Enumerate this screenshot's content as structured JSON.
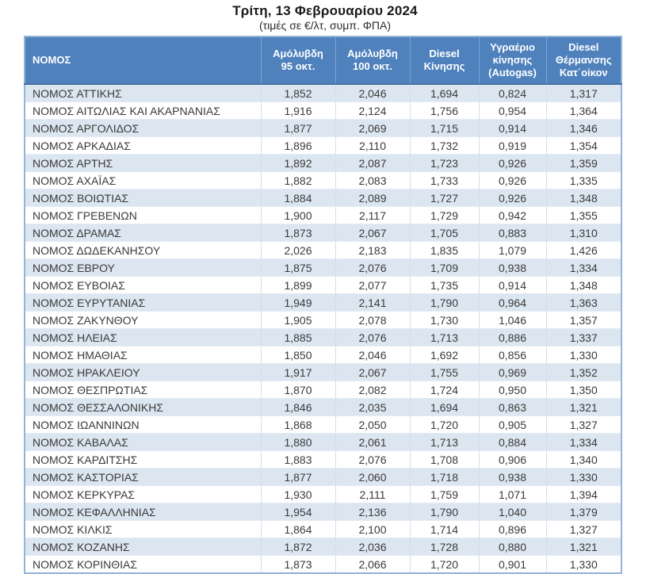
{
  "title": "Τρίτη, 13 Φεβρουαρίου 2024",
  "subtitle": "(τιμές σε €/λτ, συμπ. ΦΠΑ)",
  "colors": {
    "header_bg": "#4F81BD",
    "header_text": "#FFFFFF",
    "row_alt_bg": "#DCE6F1",
    "row_bg": "#FFFFFF",
    "table_border": "#95B3D7",
    "body_text": "#3A3A3A"
  },
  "table": {
    "columns": [
      {
        "id": "nomos",
        "lines": [
          "ΝΟΜΟΣ"
        ]
      },
      {
        "id": "unleaded95",
        "lines": [
          "Αμόλυβδη",
          "95 οκτ."
        ]
      },
      {
        "id": "unleaded100",
        "lines": [
          "Αμόλυβδη",
          "100 οκτ."
        ]
      },
      {
        "id": "diesel",
        "lines": [
          "Diesel",
          "Κίνησης"
        ]
      },
      {
        "id": "autogas",
        "lines": [
          "Υγραέριο",
          "κίνησης",
          "(Autogas)"
        ]
      },
      {
        "id": "heating-diesel",
        "lines": [
          "Diesel",
          "Θέρμανσης",
          "Κατ΄οίκον"
        ]
      }
    ],
    "rows": [
      {
        "name": "ΝΟΜΟΣ ΑΤΤΙΚΗΣ",
        "values": [
          "1,852",
          "2,046",
          "1,694",
          "0,824",
          "1,317"
        ]
      },
      {
        "name": "ΝΟΜΟΣ ΑΙΤΩΛΙΑΣ ΚΑΙ ΑΚΑΡΝΑΝΙΑΣ",
        "values": [
          "1,916",
          "2,124",
          "1,756",
          "0,954",
          "1,364"
        ]
      },
      {
        "name": "ΝΟΜΟΣ ΑΡΓΟΛΙΔΟΣ",
        "values": [
          "1,877",
          "2,069",
          "1,715",
          "0,914",
          "1,346"
        ]
      },
      {
        "name": "ΝΟΜΟΣ ΑΡΚΑΔΙΑΣ",
        "values": [
          "1,896",
          "2,110",
          "1,732",
          "0,919",
          "1,354"
        ]
      },
      {
        "name": "ΝΟΜΟΣ ΑΡΤΗΣ",
        "values": [
          "1,892",
          "2,087",
          "1,723",
          "0,926",
          "1,359"
        ]
      },
      {
        "name": "ΝΟΜΟΣ ΑΧΑΪΑΣ",
        "values": [
          "1,882",
          "2,083",
          "1,733",
          "0,926",
          "1,335"
        ]
      },
      {
        "name": "ΝΟΜΟΣ ΒΟΙΩΤΙΑΣ",
        "values": [
          "1,884",
          "2,089",
          "1,727",
          "0,926",
          "1,348"
        ]
      },
      {
        "name": "ΝΟΜΟΣ ΓΡΕΒΕΝΩΝ",
        "values": [
          "1,900",
          "2,117",
          "1,729",
          "0,942",
          "1,355"
        ]
      },
      {
        "name": "ΝΟΜΟΣ ΔΡΑΜΑΣ",
        "values": [
          "1,873",
          "2,067",
          "1,705",
          "0,883",
          "1,310"
        ]
      },
      {
        "name": "ΝΟΜΟΣ ΔΩΔΕΚΑΝΗΣΟΥ",
        "values": [
          "2,026",
          "2,183",
          "1,835",
          "1,079",
          "1,426"
        ]
      },
      {
        "name": "ΝΟΜΟΣ ΕΒΡΟΥ",
        "values": [
          "1,875",
          "2,076",
          "1,709",
          "0,938",
          "1,334"
        ]
      },
      {
        "name": "ΝΟΜΟΣ ΕΥΒΟΙΑΣ",
        "values": [
          "1,899",
          "2,077",
          "1,735",
          "0,914",
          "1,348"
        ]
      },
      {
        "name": "ΝΟΜΟΣ ΕΥΡΥΤΑΝΙΑΣ",
        "values": [
          "1,949",
          "2,141",
          "1,790",
          "0,964",
          "1,363"
        ]
      },
      {
        "name": "ΝΟΜΟΣ ΖΑΚΥΝΘΟΥ",
        "values": [
          "1,905",
          "2,078",
          "1,730",
          "1,046",
          "1,357"
        ]
      },
      {
        "name": "ΝΟΜΟΣ ΗΛΕΙΑΣ",
        "values": [
          "1,885",
          "2,076",
          "1,713",
          "0,886",
          "1,337"
        ]
      },
      {
        "name": "ΝΟΜΟΣ ΗΜΑΘΙΑΣ",
        "values": [
          "1,850",
          "2,046",
          "1,692",
          "0,856",
          "1,330"
        ]
      },
      {
        "name": "ΝΟΜΟΣ ΗΡΑΚΛΕΙΟΥ",
        "values": [
          "1,917",
          "2,067",
          "1,755",
          "0,969",
          "1,352"
        ]
      },
      {
        "name": "ΝΟΜΟΣ ΘΕΣΠΡΩΤΙΑΣ",
        "values": [
          "1,870",
          "2,082",
          "1,724",
          "0,950",
          "1,350"
        ]
      },
      {
        "name": "ΝΟΜΟΣ ΘΕΣΣΑΛΟΝΙΚΗΣ",
        "values": [
          "1,846",
          "2,035",
          "1,694",
          "0,863",
          "1,321"
        ]
      },
      {
        "name": "ΝΟΜΟΣ ΙΩΑΝΝΙΝΩΝ",
        "values": [
          "1,868",
          "2,050",
          "1,720",
          "0,905",
          "1,327"
        ]
      },
      {
        "name": "ΝΟΜΟΣ ΚΑΒΑΛΑΣ",
        "values": [
          "1,880",
          "2,061",
          "1,713",
          "0,884",
          "1,334"
        ]
      },
      {
        "name": "ΝΟΜΟΣ ΚΑΡΔΙΤΣΗΣ",
        "values": [
          "1,883",
          "2,076",
          "1,708",
          "0,906",
          "1,340"
        ]
      },
      {
        "name": "ΝΟΜΟΣ ΚΑΣΤΟΡΙΑΣ",
        "values": [
          "1,877",
          "2,060",
          "1,718",
          "0,938",
          "1,330"
        ]
      },
      {
        "name": "ΝΟΜΟΣ ΚΕΡΚΥΡΑΣ",
        "values": [
          "1,930",
          "2,111",
          "1,759",
          "1,071",
          "1,394"
        ]
      },
      {
        "name": "ΝΟΜΟΣ ΚΕΦΑΛΛΗΝΙΑΣ",
        "values": [
          "1,954",
          "2,136",
          "1,790",
          "1,040",
          "1,379"
        ]
      },
      {
        "name": "ΝΟΜΟΣ ΚΙΛΚΙΣ",
        "values": [
          "1,864",
          "2,100",
          "1,714",
          "0,896",
          "1,327"
        ]
      },
      {
        "name": "ΝΟΜΟΣ ΚΟΖΑΝΗΣ",
        "values": [
          "1,872",
          "2,036",
          "1,728",
          "0,880",
          "1,321"
        ]
      },
      {
        "name": "ΝΟΜΟΣ ΚΟΡΙΝΘΙΑΣ",
        "values": [
          "1,873",
          "2,066",
          "1,720",
          "0,901",
          "1,330"
        ]
      }
    ]
  }
}
